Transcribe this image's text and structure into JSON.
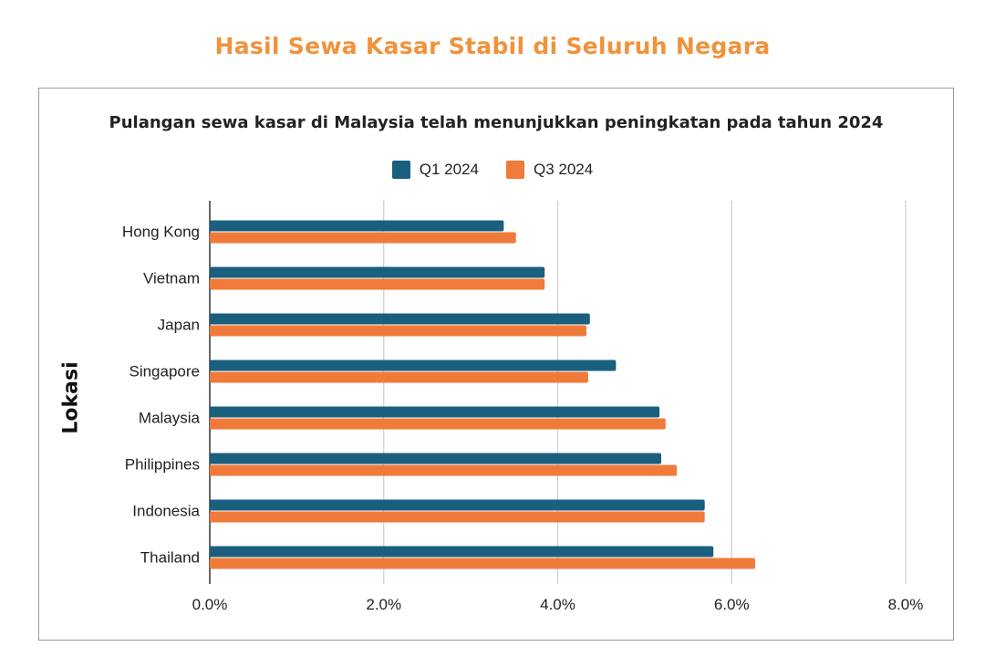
{
  "page": {
    "title": "Hasil Sewa Kasar Stabil di Seluruh Negara",
    "title_color": "#f0923c"
  },
  "chart_data": {
    "type": "bar",
    "orientation": "horizontal",
    "title": "Pulangan sewa kasar di Malaysia telah menunjukkan peningkatan pada tahun 2024",
    "ylabel": "Lokasi",
    "xlabel": "",
    "categories": [
      "Hong Kong",
      "Vietnam",
      "Japan",
      "Singapore",
      "Malaysia",
      "Philippines",
      "Indonesia",
      "Thailand"
    ],
    "series": [
      {
        "name": "Q1 2024",
        "color": "#1a5f7e",
        "values": [
          3.38,
          3.85,
          4.37,
          4.67,
          5.17,
          5.19,
          5.69,
          5.79
        ]
      },
      {
        "name": "Q3 2024",
        "color": "#f07a3a",
        "values": [
          3.52,
          3.85,
          4.33,
          4.35,
          5.24,
          5.37,
          5.69,
          6.27
        ]
      }
    ],
    "xlim": [
      0,
      8
    ],
    "xticks": [
      "0.0%",
      "2.0%",
      "4.0%",
      "6.0%",
      "8.0%"
    ],
    "grid": true,
    "legend_position": "top"
  }
}
